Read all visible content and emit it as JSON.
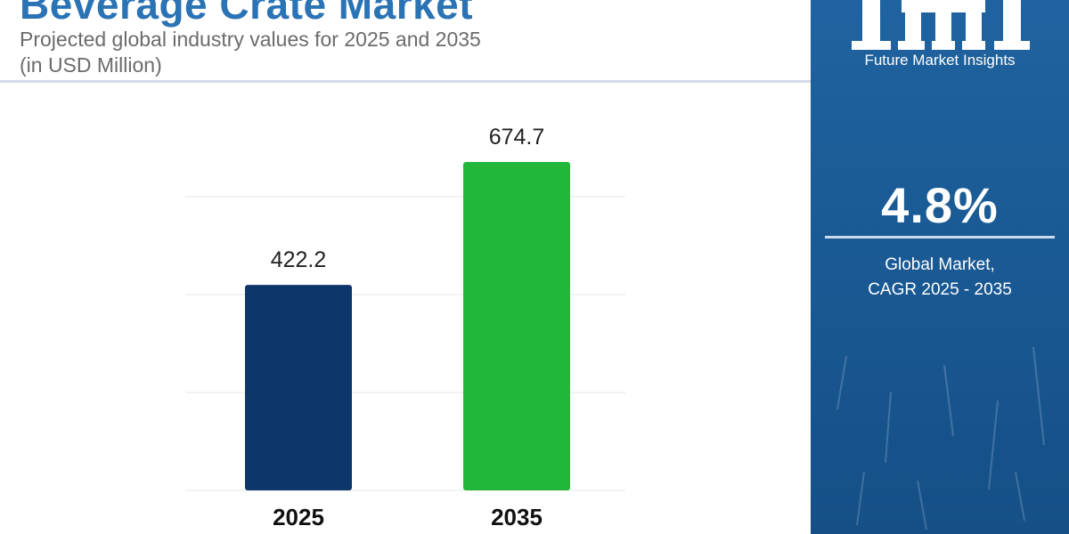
{
  "title": "Beverage Crate Market",
  "subtitle_line1": "Projected global industry values for 2025 and 2035",
  "subtitle_line2": "(in USD Million)",
  "brand": {
    "logo_text": "Future Market Insights",
    "logo_mark_icon": "fmi-logo-icon"
  },
  "cagr": {
    "value": "4.8%",
    "label_line1": "Global Market,",
    "label_line2": "CAGR 2025 - 2035"
  },
  "colors": {
    "title": "#2a73b5",
    "bar_2025": "#0d366b",
    "bar_2035": "#22b63a",
    "panel": "#1a5a94",
    "grid": "#e9e9e9"
  },
  "chart_data": {
    "type": "bar",
    "categories": [
      "2025",
      "2035"
    ],
    "values": [
      422.2,
      674.7
    ],
    "value_labels": [
      "422.2",
      "674.7"
    ],
    "title": "Beverage Crate Market",
    "xlabel": "",
    "ylabel": "",
    "ylim": [
      0,
      740
    ],
    "grid": true,
    "legend": "none"
  }
}
